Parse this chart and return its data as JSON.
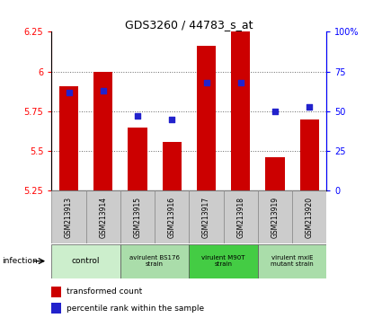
{
  "title": "GDS3260 / 44783_s_at",
  "samples": [
    "GSM213913",
    "GSM213914",
    "GSM213915",
    "GSM213916",
    "GSM213917",
    "GSM213918",
    "GSM213919",
    "GSM213920"
  ],
  "transformed_count": [
    5.91,
    6.0,
    5.65,
    5.56,
    6.16,
    6.25,
    5.46,
    5.7
  ],
  "percentile_rank": [
    62,
    63,
    47,
    45,
    68,
    68,
    50,
    53
  ],
  "ylim_left": [
    5.25,
    6.25
  ],
  "ylim_right": [
    0,
    100
  ],
  "yticks_left": [
    5.25,
    5.5,
    5.75,
    6.0,
    6.25
  ],
  "yticks_right": [
    0,
    25,
    50,
    75,
    100
  ],
  "ytick_labels_left": [
    "5.25",
    "5.5",
    "5.75",
    "6",
    "6.25"
  ],
  "ytick_labels_right": [
    "0",
    "25",
    "50",
    "75",
    "100%"
  ],
  "bar_color": "#cc0000",
  "dot_color": "#2222cc",
  "bar_bottom": 5.25,
  "group_spans": [
    [
      0,
      1,
      "control",
      "#cceecc"
    ],
    [
      2,
      3,
      "avirulent BS176\nstrain",
      "#aaddaa"
    ],
    [
      4,
      5,
      "virulent M90T\nstrain",
      "#44cc44"
    ],
    [
      6,
      7,
      "virulent mxiE\nmutant strain",
      "#aaddaa"
    ]
  ],
  "infection_label": "infection",
  "legend_items": [
    {
      "color": "#cc0000",
      "label": "transformed count"
    },
    {
      "color": "#2222cc",
      "label": "percentile rank within the sample"
    }
  ],
  "grid_yticks": [
    5.5,
    5.75,
    6.0
  ],
  "bar_width": 0.55,
  "fig_width": 4.25,
  "fig_height": 3.54,
  "sample_box_color": "#cccccc",
  "sample_box_edge": "#888888"
}
